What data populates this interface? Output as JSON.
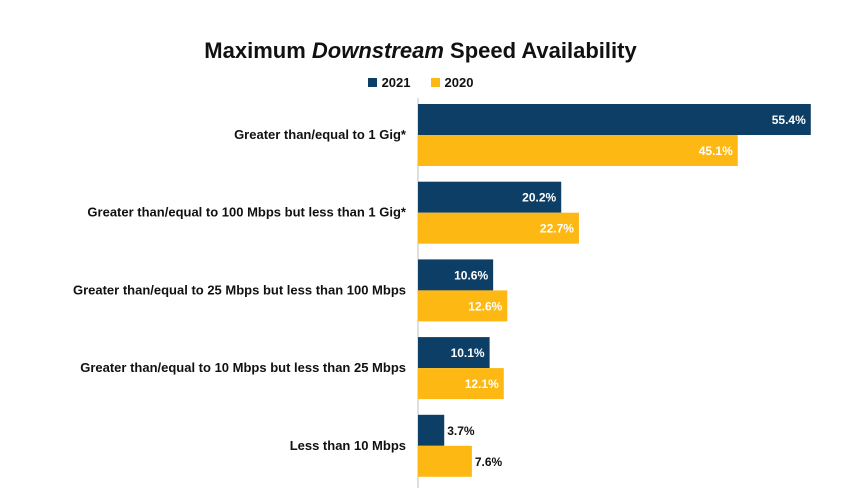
{
  "chart_data": {
    "type": "bar",
    "orientation": "horizontal",
    "title_parts": [
      "Maximum ",
      "Downstream",
      " Speed Availability"
    ],
    "categories": [
      "Greater than/equal to 1 Gig*",
      "Greater than/equal to 100 Mbps but less than 1 Gig*",
      "Greater than/equal to 25 Mbps but less than 100 Mbps",
      "Greater than/equal to 10 Mbps but less than 25 Mbps",
      "Less than 10 Mbps"
    ],
    "series": [
      {
        "name": "2021",
        "values": [
          55.4,
          20.2,
          10.6,
          10.1,
          3.7
        ],
        "labels": [
          "55.4%",
          "20.2%",
          "10.6%",
          "10.1%",
          "3.7%"
        ],
        "color": "#0d3f66"
      },
      {
        "name": "2020",
        "values": [
          45.1,
          22.7,
          12.6,
          12.1,
          7.6
        ],
        "labels": [
          "45.1%",
          "22.7%",
          "12.6%",
          "12.1%",
          "7.6%"
        ],
        "color": "#fdb813"
      }
    ],
    "xlim": [
      0,
      60
    ],
    "grid": false,
    "legend_position": "top-center"
  }
}
